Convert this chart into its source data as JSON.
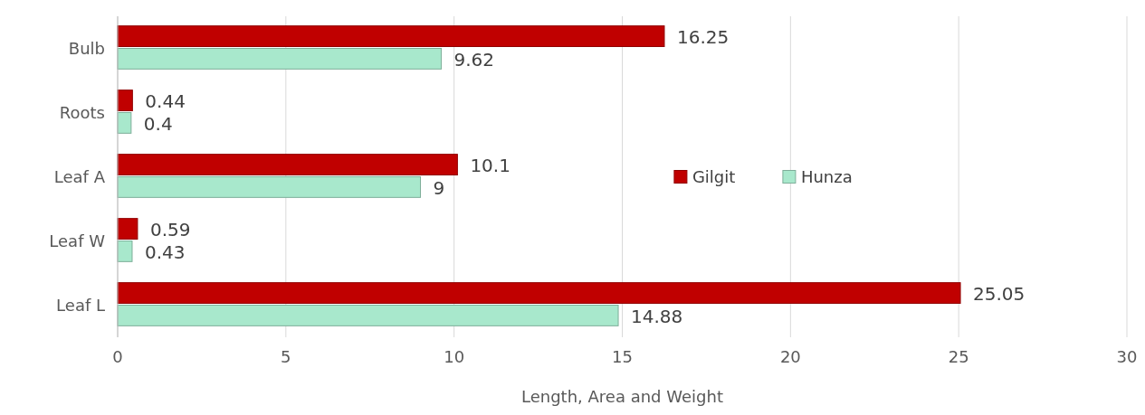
{
  "chart_data": {
    "type": "bar",
    "orientation": "horizontal",
    "xlabel": "Length, Area and Weight",
    "categories": [
      "Bulb",
      "Roots",
      "Leaf A",
      "Leaf W",
      "Leaf L"
    ],
    "series": [
      {
        "name": "Gilgit",
        "color": "#c00000",
        "values": [
          16.25,
          0.44,
          10.1,
          0.59,
          25.05
        ]
      },
      {
        "name": "Hunza",
        "color": "#a8e8cc",
        "values": [
          9.62,
          0.4,
          9,
          0.43,
          14.88
        ]
      }
    ],
    "xlim": [
      0,
      30
    ],
    "xticks": [
      0,
      5,
      10,
      15,
      20,
      25,
      30
    ],
    "grid": "x",
    "legend": "right",
    "data_labels": true
  }
}
